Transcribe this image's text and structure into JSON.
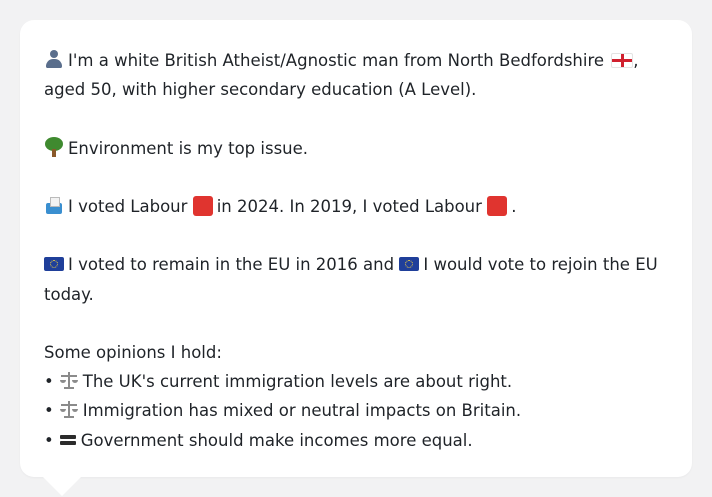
{
  "profile": {
    "intro_line1": "I'm a white British Atheist/Agnostic man from North Bedfordshire",
    "intro_line1_end": ",",
    "intro_line2": "aged 50, with higher secondary education (A Level).",
    "top_issue": "Environment is my top issue.",
    "vote_part1": "I voted Labour",
    "vote_part2": "in 2024. In 2019, I voted Labour",
    "vote_part3": ".",
    "eu_part1": "I voted to remain in the EU in 2016 and",
    "eu_part2": "I would vote to rejoin the EU",
    "eu_line2": "today.",
    "opinions_heading": "Some opinions I hold:",
    "bullet_char": "•",
    "opinions": [
      "The UK's current immigration levels are about right.",
      "Immigration has mixed or neutral impacts on Britain.",
      "Government should make incomes more equal."
    ]
  },
  "icons": {
    "person": "person-icon",
    "flag": "flag-england-icon",
    "tree": "tree-icon",
    "ballot": "ballot-box-icon",
    "party": "red-square-icon",
    "eu": "eu-flag-icon",
    "scales": "scales-icon",
    "equals": "equals-icon"
  },
  "colors": {
    "labour_red": "#e0342f",
    "eu_blue": "#1f3f9a",
    "card_background": "#ffffff",
    "page_background": "#f2f2f3"
  }
}
